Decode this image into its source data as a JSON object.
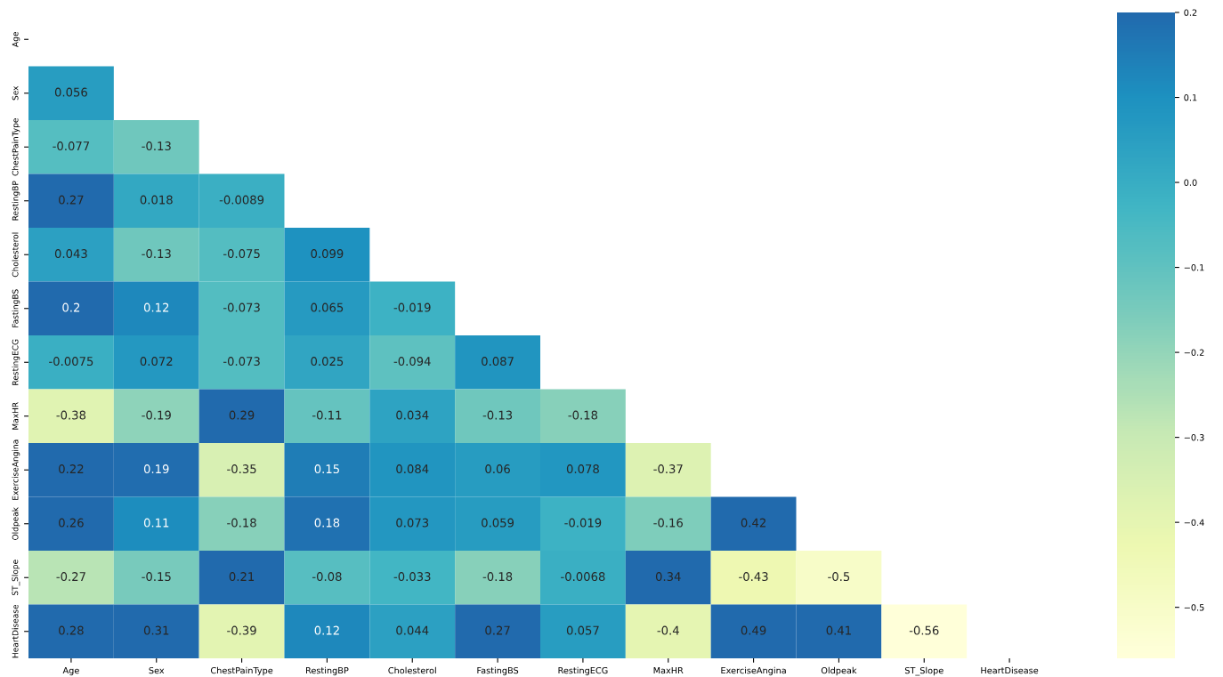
{
  "chart_data": {
    "type": "heatmap",
    "categories": [
      "Age",
      "Sex",
      "ChestPainType",
      "RestingBP",
      "Cholesterol",
      "FastingBS",
      "RestingECG",
      "MaxHR",
      "ExerciseAngina",
      "Oldpeak",
      "ST_Slope",
      "HeartDisease"
    ],
    "y_categories": [
      "Age",
      "Sex",
      "ChestPainType",
      "RestingBP",
      "Cholesterol",
      "FastingBS",
      "RestingECG",
      "MaxHR",
      "ExerciseAngina",
      "Oldpeak",
      "ST_Slope",
      "HeartDisease"
    ],
    "cells": [
      [
        null,
        null,
        null,
        null,
        null,
        null,
        null,
        null,
        null,
        null,
        null,
        null
      ],
      [
        0.056,
        null,
        null,
        null,
        null,
        null,
        null,
        null,
        null,
        null,
        null,
        null
      ],
      [
        -0.077,
        -0.13,
        null,
        null,
        null,
        null,
        null,
        null,
        null,
        null,
        null,
        null
      ],
      [
        0.27,
        0.018,
        -0.0089,
        null,
        null,
        null,
        null,
        null,
        null,
        null,
        null,
        null
      ],
      [
        0.043,
        -0.13,
        -0.075,
        0.099,
        null,
        null,
        null,
        null,
        null,
        null,
        null,
        null
      ],
      [
        0.2,
        0.12,
        -0.073,
        0.065,
        -0.019,
        null,
        null,
        null,
        null,
        null,
        null,
        null
      ],
      [
        -0.0075,
        0.072,
        -0.073,
        0.025,
        -0.094,
        0.087,
        null,
        null,
        null,
        null,
        null,
        null
      ],
      [
        -0.38,
        -0.19,
        0.29,
        -0.11,
        0.034,
        -0.13,
        -0.18,
        null,
        null,
        null,
        null,
        null
      ],
      [
        0.22,
        0.19,
        -0.35,
        0.15,
        0.084,
        0.06,
        0.078,
        -0.37,
        null,
        null,
        null,
        null
      ],
      [
        0.26,
        0.11,
        -0.18,
        0.18,
        0.073,
        0.059,
        -0.019,
        -0.16,
        0.42,
        null,
        null,
        null
      ],
      [
        -0.27,
        -0.15,
        0.21,
        -0.08,
        -0.033,
        -0.18,
        -0.0068,
        0.34,
        -0.43,
        -0.5,
        null,
        null
      ],
      [
        0.28,
        0.31,
        -0.39,
        0.12,
        0.044,
        0.27,
        0.057,
        -0.4,
        0.49,
        0.41,
        -0.56,
        null
      ]
    ],
    "data_labels": true,
    "clim": [
      -0.56,
      0.2
    ],
    "cticks": [
      {
        "value": 0.2,
        "label": "0.2"
      },
      {
        "value": 0.1,
        "label": "0.1"
      },
      {
        "value": 0.0,
        "label": "0.0"
      },
      {
        "value": -0.1,
        "label": "−0.1"
      },
      {
        "value": -0.2,
        "label": "−0.2"
      },
      {
        "value": -0.3,
        "label": "−0.3"
      },
      {
        "value": -0.4,
        "label": "−0.4"
      },
      {
        "value": -0.5,
        "label": "−0.5"
      }
    ]
  }
}
